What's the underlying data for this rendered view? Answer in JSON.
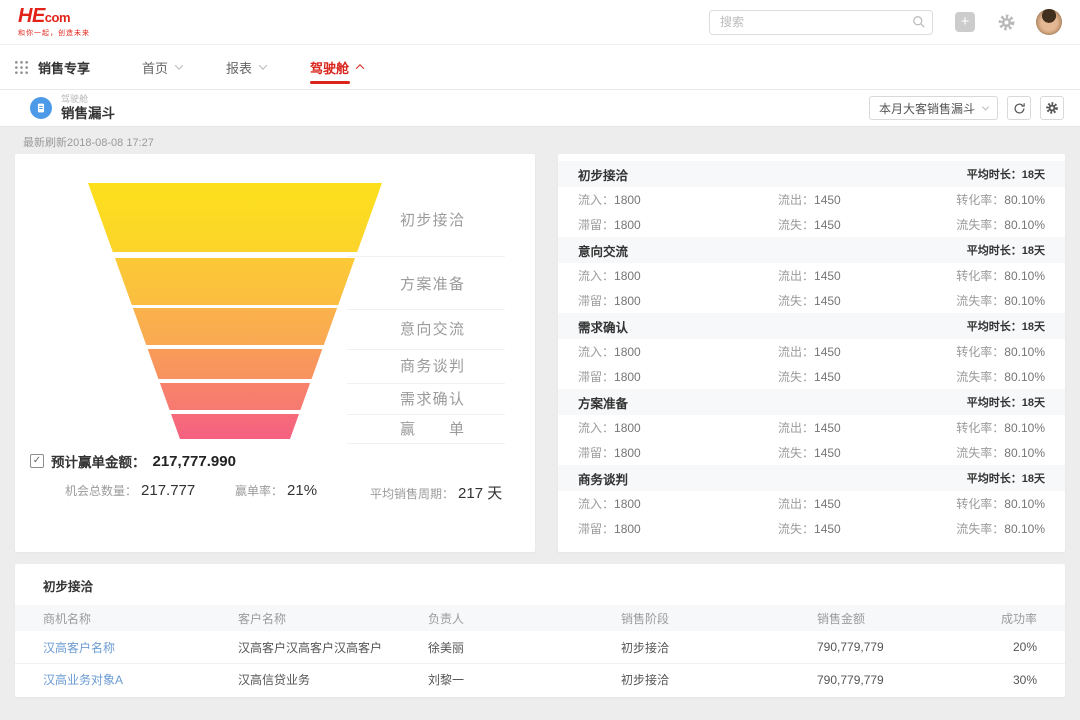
{
  "header": {
    "logo_text_main": "HE",
    "logo_text_sub": "com",
    "logo_tagline": "和你一起，创造未来",
    "search_placeholder": "搜索",
    "brand_color": "#D9251C",
    "logo_color": "#E2231A"
  },
  "nav": {
    "workspace": "销售专享",
    "items": [
      {
        "label": "首页",
        "active": false
      },
      {
        "label": "报表",
        "active": false
      },
      {
        "label": "驾驶舱",
        "active": true
      }
    ]
  },
  "titlebar": {
    "breadcrumb": "驾驶舱",
    "title": "销售漏斗",
    "selector_value": "本月大客销售漏斗"
  },
  "refreshed_at": "最新刷新2018-08-08  17:27",
  "chart_data": {
    "type": "funnel",
    "title": "销售漏斗",
    "stages": [
      "初步接洽",
      "方案准备",
      "意向交流",
      "商务谈判",
      "需求确认",
      "赢单"
    ],
    "colors_top_to_bottom": [
      "#FCE01C",
      "#FBC935",
      "#FAB24A",
      "#F99B58",
      "#F8826B",
      "#F66C7A"
    ]
  },
  "funnel": {
    "segments": [
      {
        "label": "初步接洽",
        "color_top": "#FCE01C",
        "color_bottom": "#FCD32B"
      },
      {
        "label": "方案准备",
        "color_top": "#FBC935",
        "color_bottom": "#FBBD41"
      },
      {
        "label": "意向交流",
        "color_top": "#FAB24A",
        "color_bottom": "#FAA953"
      },
      {
        "label": "商务谈判",
        "color_top": "#F99B58",
        "color_bottom": "#F89160"
      },
      {
        "label": "需求确认",
        "color_top": "#F8826B",
        "color_bottom": "#F77A70"
      },
      {
        "label": "赢单",
        "color_top": "#F66C7A",
        "color_bottom": "#F56180"
      }
    ],
    "estimate_label": "预计赢单金额：",
    "estimate_value": "217,777.990",
    "stats": [
      {
        "label": "机会总数量：",
        "value": "217.777"
      },
      {
        "label": "赢单率：",
        "value": "21%"
      },
      {
        "label": "平均销售周期：",
        "value": "217 天"
      }
    ]
  },
  "stages": {
    "metric_labels": {
      "avg": "平均时长：",
      "inflow": "流入：",
      "outflow": "流出：",
      "conversion": "转化率：",
      "retained": "滞留：",
      "lost": "流失：",
      "loss_rate": "流失率："
    },
    "items": [
      {
        "name": "初步接洽",
        "avg": "18天",
        "inflow": "1800",
        "outflow": "1450",
        "conversion": "80.10%",
        "retained": "1800",
        "lost": "1450",
        "loss_rate": "80.10%"
      },
      {
        "name": "意向交流",
        "avg": "18天",
        "inflow": "1800",
        "outflow": "1450",
        "conversion": "80.10%",
        "retained": "1800",
        "lost": "1450",
        "loss_rate": "80.10%"
      },
      {
        "name": "需求确认",
        "avg": "18天",
        "inflow": "1800",
        "outflow": "1450",
        "conversion": "80.10%",
        "retained": "1800",
        "lost": "1450",
        "loss_rate": "80.10%"
      },
      {
        "name": "方案准备",
        "avg": "18天",
        "inflow": "1800",
        "outflow": "1450",
        "conversion": "80.10%",
        "retained": "1800",
        "lost": "1450",
        "loss_rate": "80.10%"
      },
      {
        "name": "商务谈判",
        "avg": "18天",
        "inflow": "1800",
        "outflow": "1450",
        "conversion": "80.10%",
        "retained": "1800",
        "lost": "1450",
        "loss_rate": "80.10%"
      }
    ]
  },
  "table": {
    "title": "初步接洽",
    "columns": [
      "商机名称",
      "客户名称",
      "负责人",
      "销售阶段",
      "销售金额",
      "成功率"
    ],
    "rows": [
      {
        "opportunity": "汉高客户名称",
        "customer": "汉高客户汉高客户汉高客户",
        "owner": "徐美丽",
        "stage": "初步接洽",
        "amount": "790,779,779",
        "win_rate": "20%"
      },
      {
        "opportunity": "汉高业务对象A",
        "customer": "汉高信贷业务",
        "owner": "刘黎一",
        "stage": "初步接洽",
        "amount": "790,779,779",
        "win_rate": "30%"
      }
    ],
    "link_color": "#6B9BD2"
  }
}
